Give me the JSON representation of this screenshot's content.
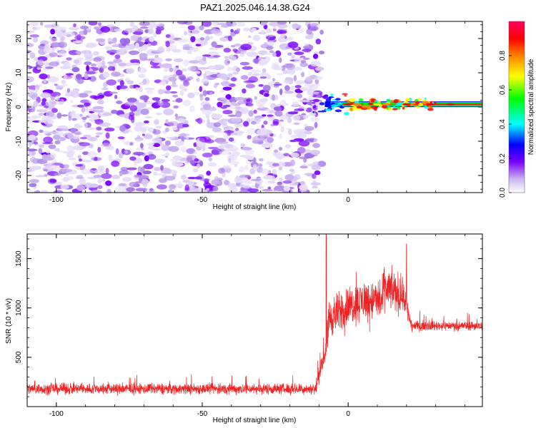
{
  "title": "PAZ1.2025.046.14.38.G24",
  "chart_data": [
    {
      "type": "heatmap",
      "xlabel": "Height of straight line (km)",
      "ylabel": "Frequency (Hz)",
      "xlim": [
        -110,
        46
      ],
      "ylim": [
        -25,
        25
      ],
      "xticks": [
        -100,
        -50,
        0
      ],
      "yticks": [
        -20,
        -10,
        0,
        10,
        20
      ],
      "signal": {
        "onset_km": -10,
        "frequency_hz": 0.8,
        "description_peak_region_km": [
          -3,
          25
        ]
      },
      "colorbar": {
        "label": "Normalized spectral amplitude",
        "range": [
          0,
          1
        ],
        "ticks": [
          0.0,
          0.2,
          0.4,
          0.6,
          0.8
        ],
        "colormap": [
          "#ffffff",
          "#c8b3f0",
          "#7a00ff",
          "#0000ff",
          "#00ffff",
          "#00ff00",
          "#ffff00",
          "#ff8000",
          "#ff0000",
          "#ff0060"
        ]
      }
    },
    {
      "type": "line",
      "xlabel": "Height of straight line (km)",
      "ylabel": "SNR (10 * v/v)",
      "xlim": [
        -110,
        46
      ],
      "ylim": [
        0,
        1750
      ],
      "xticks": [
        -100,
        -50,
        0
      ],
      "yticks": [
        500,
        1000,
        1500
      ],
      "color": "#ee2222",
      "segments": [
        {
          "x_from": -110,
          "x_to": -11,
          "mean": 180,
          "noise": 80
        },
        {
          "x_from": -11,
          "x_to": -7,
          "mean_from": 200,
          "mean_to": 650,
          "noise": 120
        },
        {
          "x_from": -7,
          "x_to": 20,
          "mean": 1000,
          "noise": 300
        },
        {
          "x_from": 20,
          "x_to": 22,
          "mean_from": 1000,
          "mean_to": 800,
          "noise": 150
        },
        {
          "x_from": 22,
          "x_to": 46,
          "mean": 820,
          "noise": 70
        }
      ],
      "peaks": [
        {
          "x": -7.5,
          "y": 1750
        },
        {
          "x": 20,
          "y": 1650
        }
      ]
    }
  ]
}
